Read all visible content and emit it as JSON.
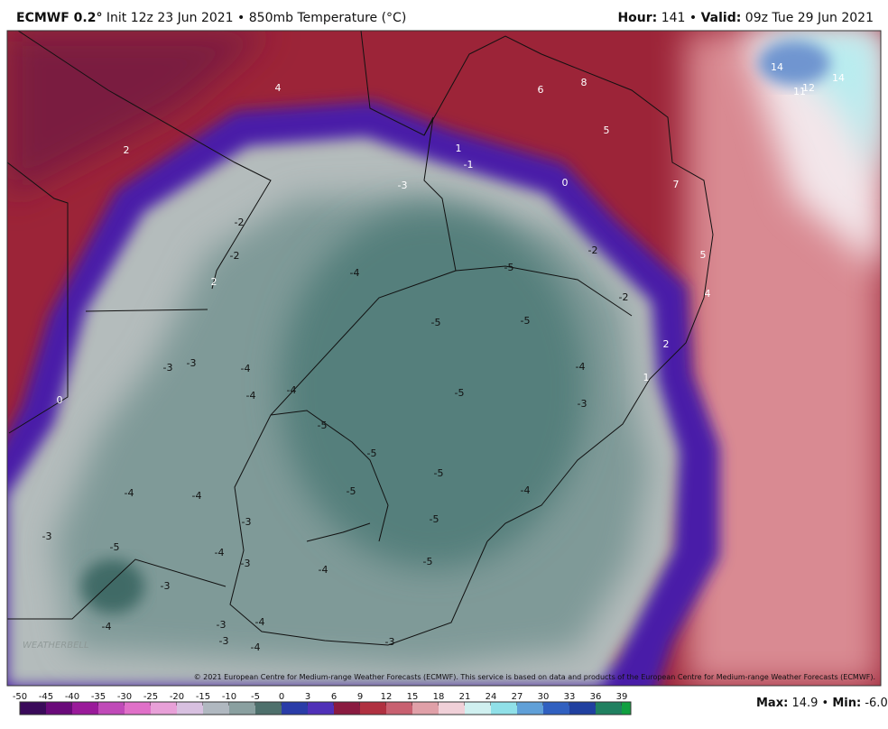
{
  "header": {
    "model": "ECMWF 0.2°",
    "init": "Init 12z 23 Jun 2021",
    "separator": "•",
    "field": "850mb Temperature (°C)",
    "hour_label": "Hour:",
    "hour": "141",
    "valid_label": "Valid:",
    "valid": "09z Tue 29 Jun 2021"
  },
  "map": {
    "contour_labels": [
      4,
      2,
      6,
      8,
      14,
      11,
      12,
      14,
      1,
      -1,
      5,
      0,
      7,
      -3,
      -2,
      -2,
      -2,
      -5,
      5,
      -4,
      2,
      -2,
      4,
      -5,
      -5,
      2,
      -3,
      -3,
      -4,
      -4,
      1,
      -4,
      -4,
      -5,
      0,
      -3,
      -5,
      -5,
      -5,
      -4,
      -4,
      -5,
      -4,
      -3,
      -5,
      -3,
      -5,
      -4,
      -3,
      -4,
      -5,
      -3,
      -4,
      -3,
      -4,
      -3,
      -4,
      -3
    ],
    "copyright": "© 2021 European Centre for Medium-range Weather Forecasts (ECMWF). This service is based on data and products of the European Centre for Medium-range Weather Forecasts (ECMWF).",
    "logo": "WEATHERBELL"
  },
  "colorbar": {
    "ticks": [
      -50,
      -45,
      -40,
      -35,
      -30,
      -25,
      -20,
      -15,
      -10,
      -5,
      0,
      3,
      6,
      9,
      12,
      15,
      18,
      21,
      24,
      27,
      30,
      33,
      36,
      39
    ]
  },
  "footer": {
    "max_label": "Max:",
    "max": "14.9",
    "separator": "•",
    "min_label": "Min:",
    "min": "-6.0"
  }
}
